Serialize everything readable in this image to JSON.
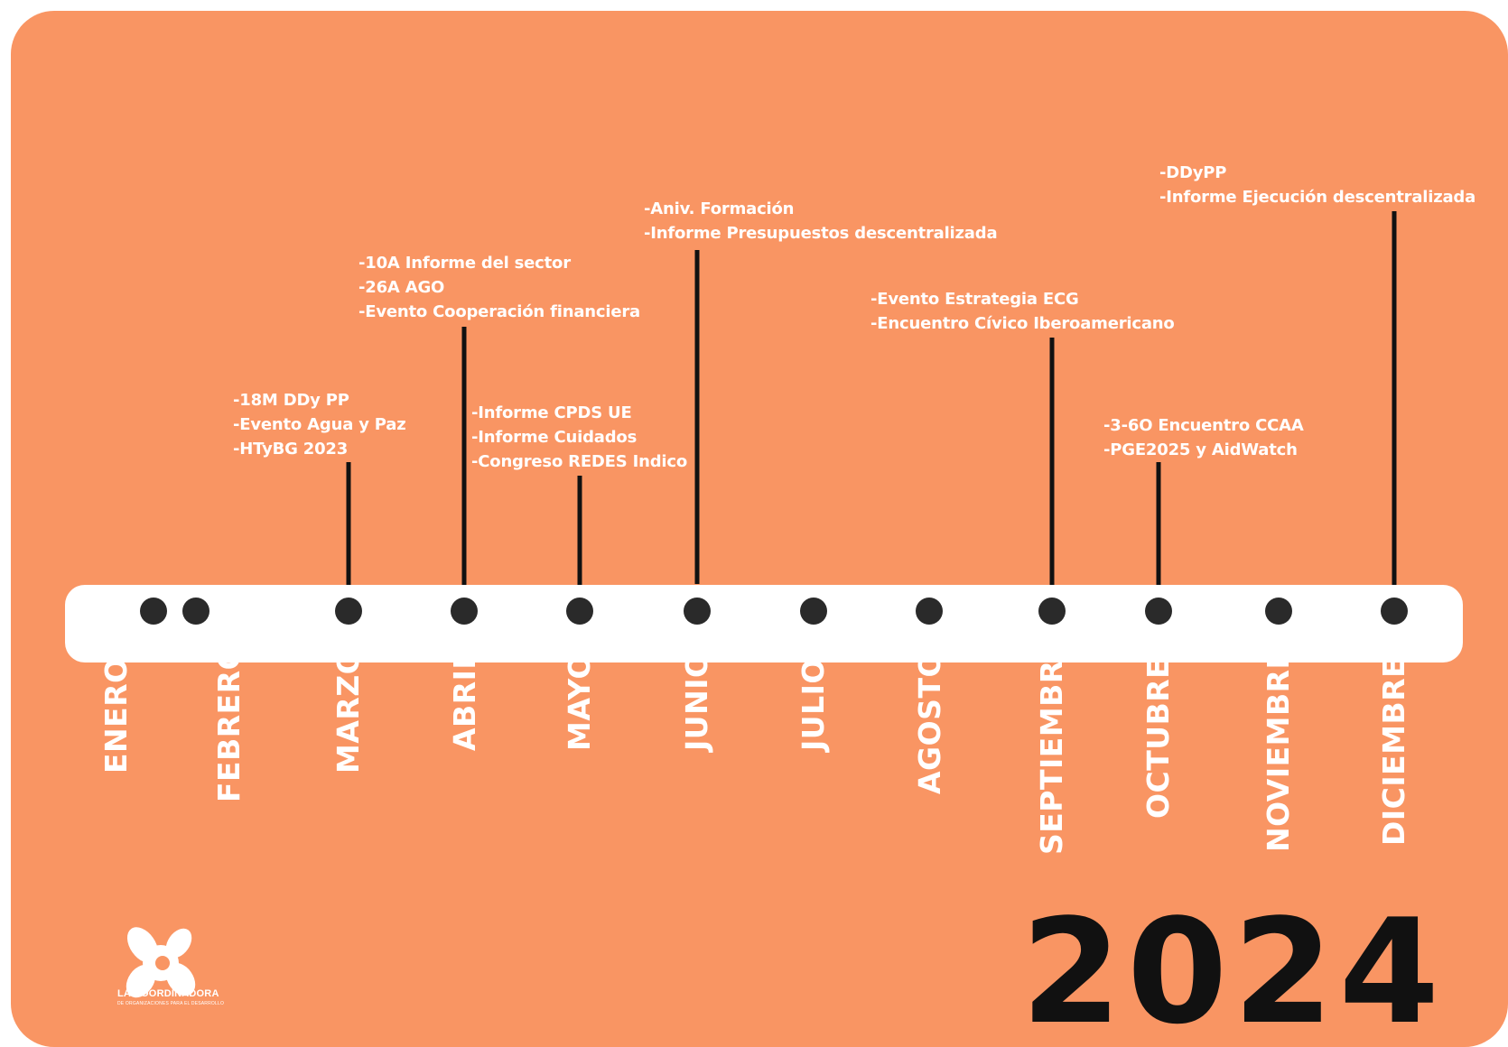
{
  "year": "2024",
  "logo": {
    "name": "LA COORDINADORA",
    "subtitle": "DE ORGANIZACIONES PARA EL DESARROLLO"
  },
  "months": [
    "ENERO",
    "FEBRERO",
    "MARZO",
    "ABRIL",
    "MAYO",
    "JUNIO",
    "JULIO",
    "AGOSTO",
    "SEPTIEMBRE",
    "OCTUBRE",
    "NOVIEMBRE",
    "DICIEMBRE"
  ],
  "events": {
    "marzo": [
      "-18M DDy PP",
      "-Evento  Agua y Paz",
      "-HTyBG 2023"
    ],
    "abril": [
      "-10A  Informe del sector",
      "-26A AGO",
      "-Evento Cooperación financiera"
    ],
    "mayo": [
      "-Informe CPDS UE",
      "-Informe Cuidados",
      "-Congreso REDES Indico"
    ],
    "junio": [
      "-Aniv. Formación",
      "-Informe Presupuestos descentralizada"
    ],
    "septiembre": [
      "-Evento Estrategia ECG",
      "-Encuentro Cívico Iberoamericano"
    ],
    "octubre": [
      "-3-6O Encuentro CCAA",
      "-PGE2025  y AidWatch"
    ],
    "diciembre": [
      "-DDyPP",
      "-Informe Ejecución descentralizada"
    ]
  },
  "colors": {
    "background": "#f99563",
    "bar": "#ffffff",
    "dot": "#2a2a2a",
    "text": "#ffffff",
    "year": "#111111"
  }
}
